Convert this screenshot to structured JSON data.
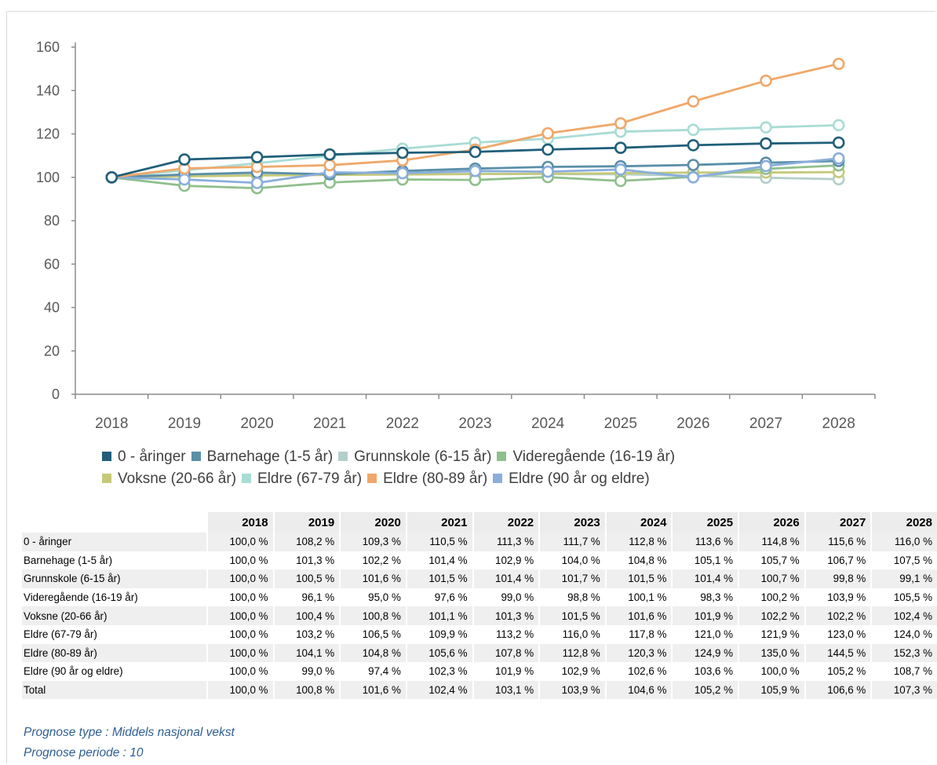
{
  "chart_data": {
    "type": "line",
    "x": [
      "2018",
      "2019",
      "2020",
      "2021",
      "2022",
      "2023",
      "2024",
      "2025",
      "2026",
      "2027",
      "2028"
    ],
    "ylim": [
      0,
      160
    ],
    "yticks": [
      0,
      20,
      40,
      60,
      80,
      100,
      120,
      140,
      160
    ],
    "grid": false,
    "legend_position": "bottom",
    "series": [
      {
        "name": "0 - åringer",
        "color": "#1f5f7a",
        "values": [
          100.0,
          108.2,
          109.3,
          110.5,
          111.3,
          111.7,
          112.8,
          113.6,
          114.8,
          115.6,
          116.0
        ]
      },
      {
        "name": "Barnehage (1-5 år)",
        "color": "#5a8fa8",
        "values": [
          100.0,
          101.3,
          102.2,
          101.4,
          102.9,
          104.0,
          104.8,
          105.1,
          105.7,
          106.7,
          107.5
        ]
      },
      {
        "name": "Grunnskole (6-15 år)",
        "color": "#b4cfc9",
        "values": [
          100.0,
          100.5,
          101.6,
          101.5,
          101.4,
          101.7,
          101.5,
          101.4,
          100.7,
          99.8,
          99.1
        ]
      },
      {
        "name": "Videregående (16-19 år)",
        "color": "#8fbf8c",
        "values": [
          100.0,
          96.1,
          95.0,
          97.6,
          99.0,
          98.8,
          100.1,
          98.3,
          100.2,
          103.9,
          105.5
        ]
      },
      {
        "name": "Voksne (20-66 år)",
        "color": "#c6c97a",
        "values": [
          100.0,
          100.4,
          100.8,
          101.1,
          101.3,
          101.5,
          101.6,
          101.9,
          102.2,
          102.2,
          102.4
        ]
      },
      {
        "name": "Eldre (67-79 år)",
        "color": "#a8dcd4",
        "values": [
          100.0,
          103.2,
          106.5,
          109.9,
          113.2,
          116.0,
          117.8,
          121.0,
          121.9,
          123.0,
          124.0
        ]
      },
      {
        "name": "Eldre (80-89 år)",
        "color": "#f0a86a",
        "values": [
          100.0,
          104.1,
          104.8,
          105.6,
          107.8,
          112.8,
          120.3,
          124.9,
          135.0,
          144.5,
          152.3
        ]
      },
      {
        "name": "Eldre (90 år og eldre)",
        "color": "#8aaedc",
        "values": [
          100.0,
          99.0,
          97.4,
          102.3,
          101.9,
          102.9,
          102.6,
          103.6,
          100.0,
          105.2,
          108.7
        ]
      }
    ]
  },
  "legend_rows": [
    [
      0,
      1,
      2,
      3
    ],
    [
      4,
      5,
      6,
      7
    ]
  ],
  "table": {
    "columns": [
      "2018",
      "2019",
      "2020",
      "2021",
      "2022",
      "2023",
      "2024",
      "2025",
      "2026",
      "2027",
      "2028"
    ],
    "rows": [
      {
        "label": "0 - åringer",
        "values": [
          "100,0 %",
          "108,2 %",
          "109,3 %",
          "110,5 %",
          "111,3 %",
          "111,7 %",
          "112,8 %",
          "113,6 %",
          "114,8 %",
          "115,6 %",
          "116,0 %"
        ]
      },
      {
        "label": "Barnehage (1-5 år)",
        "values": [
          "100,0 %",
          "101,3 %",
          "102,2 %",
          "101,4 %",
          "102,9 %",
          "104,0 %",
          "104,8 %",
          "105,1 %",
          "105,7 %",
          "106,7 %",
          "107,5 %"
        ]
      },
      {
        "label": "Grunnskole (6-15 år)",
        "values": [
          "100,0 %",
          "100,5 %",
          "101,6 %",
          "101,5 %",
          "101,4 %",
          "101,7 %",
          "101,5 %",
          "101,4 %",
          "100,7 %",
          "99,8 %",
          "99,1 %"
        ]
      },
      {
        "label": "Videregående (16-19 år)",
        "values": [
          "100,0 %",
          "96,1 %",
          "95,0 %",
          "97,6 %",
          "99,0 %",
          "98,8 %",
          "100,1 %",
          "98,3 %",
          "100,2 %",
          "103,9 %",
          "105,5 %"
        ]
      },
      {
        "label": "Voksne (20-66 år)",
        "values": [
          "100,0 %",
          "100,4 %",
          "100,8 %",
          "101,1 %",
          "101,3 %",
          "101,5 %",
          "101,6 %",
          "101,9 %",
          "102,2 %",
          "102,2 %",
          "102,4 %"
        ]
      },
      {
        "label": "Eldre (67-79 år)",
        "values": [
          "100,0 %",
          "103,2 %",
          "106,5 %",
          "109,9 %",
          "113,2 %",
          "116,0 %",
          "117,8 %",
          "121,0 %",
          "121,9 %",
          "123,0 %",
          "124,0 %"
        ]
      },
      {
        "label": "Eldre (80-89 år)",
        "values": [
          "100,0 %",
          "104,1 %",
          "104,8 %",
          "105,6 %",
          "107,8 %",
          "112,8 %",
          "120,3 %",
          "124,9 %",
          "135,0 %",
          "144,5 %",
          "152,3 %"
        ]
      },
      {
        "label": "Eldre (90 år og eldre)",
        "values": [
          "100,0 %",
          "99,0 %",
          "97,4 %",
          "102,3 %",
          "101,9 %",
          "102,9 %",
          "102,6 %",
          "103,6 %",
          "100,0 %",
          "105,2 %",
          "108,7 %"
        ]
      },
      {
        "label": "Total",
        "values": [
          "100,0 %",
          "100,8 %",
          "101,6 %",
          "102,4 %",
          "103,1 %",
          "103,9 %",
          "104,6 %",
          "105,2 %",
          "105,9 %",
          "106,6 %",
          "107,3 %"
        ]
      }
    ]
  },
  "footer": {
    "type_line": "Prognose type :  Middels nasjonal vekst",
    "period_line": "Prognose periode :  10"
  }
}
